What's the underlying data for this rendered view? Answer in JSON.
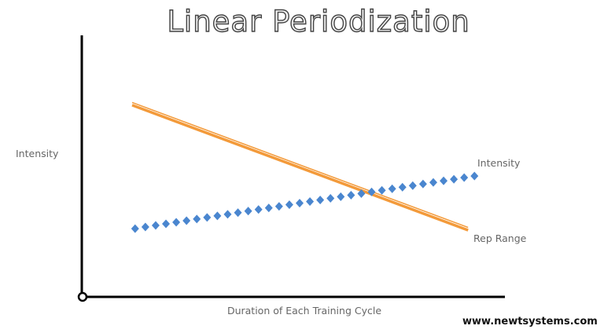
{
  "chart_data": {
    "type": "line",
    "title": "Linear Periodization",
    "ylabel": "Intensity",
    "xlabel": "Duration of Each Training Cycle",
    "xlim": [
      0,
      10
    ],
    "ylim": [
      0,
      10
    ],
    "grid": false,
    "axis_ticks": false,
    "series": [
      {
        "name": "Rep Range",
        "style": "double solid line",
        "color": "#f39a3a",
        "x": [
          1.19,
          9.13
        ],
        "y": [
          7.33,
          2.55
        ]
      },
      {
        "name": "Intensity",
        "style": "diamond markers",
        "color": "#4a86cf",
        "x": [
          1.26,
          9.28
        ],
        "y": [
          2.61,
          4.62
        ],
        "marker_count": 34
      }
    ]
  },
  "watermark": "www.newtsystems.com"
}
